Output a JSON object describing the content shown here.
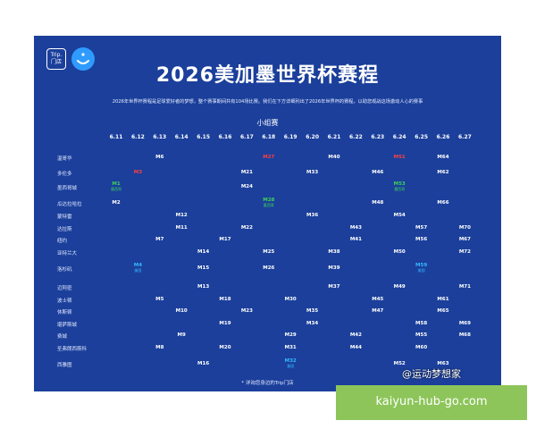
{
  "logo": {
    "trip_text": "Trip.\n门店"
  },
  "title": "2026美加墨世界杯赛程",
  "subtitle": "2026年世界杯赛程是足球爱好者的梦想，整个赛事期间共有104场比赛。我们在下方详细列出了2026年世界杯的赛程，以助您观战这场激动人心的赛事",
  "stage": "小组赛",
  "dates": [
    "6.11",
    "6.12",
    "6.13",
    "6.14",
    "6.15",
    "6.16",
    "6.17",
    "6.18",
    "6.19",
    "6.20",
    "6.21",
    "6.22",
    "6.23",
    "6.24",
    "6.25",
    "6.26",
    "6.27"
  ],
  "cities": [
    "温哥华",
    "多伦多",
    "墨西哥城",
    "瓜达拉哈拉",
    "蒙特雷",
    "达拉斯",
    "纽约",
    "亚特兰大",
    "洛杉矶",
    "迈阿密",
    "波士顿",
    "休斯顿",
    "堪萨斯城",
    "费城",
    "圣弗朗西斯科",
    "西雅图"
  ],
  "matches": [
    {
      "city": 0,
      "date": 2,
      "label": "M6"
    },
    {
      "city": 0,
      "date": 7,
      "label": "M27",
      "color": "red"
    },
    {
      "city": 0,
      "date": 10,
      "label": "M40"
    },
    {
      "city": 0,
      "date": 13,
      "label": "M51",
      "color": "red"
    },
    {
      "city": 0,
      "date": 15,
      "label": "M64"
    },
    {
      "city": 1,
      "date": 1,
      "label": "M3",
      "color": "red"
    },
    {
      "city": 1,
      "date": 6,
      "label": "M21"
    },
    {
      "city": 1,
      "date": 9,
      "label": "M33"
    },
    {
      "city": 1,
      "date": 12,
      "label": "M46"
    },
    {
      "city": 1,
      "date": 15,
      "label": "M62"
    },
    {
      "city": 2,
      "date": 0,
      "label": "M1",
      "sub": "墨西哥",
      "color": "green"
    },
    {
      "city": 2,
      "date": 6,
      "label": "M24"
    },
    {
      "city": 2,
      "date": 13,
      "label": "M53",
      "sub": "墨西哥",
      "color": "green"
    },
    {
      "city": 3,
      "date": 0,
      "label": "M2"
    },
    {
      "city": 3,
      "date": 7,
      "label": "M28",
      "sub": "墨西哥",
      "color": "green"
    },
    {
      "city": 3,
      "date": 12,
      "label": "M48"
    },
    {
      "city": 3,
      "date": 15,
      "label": "M66"
    },
    {
      "city": 4,
      "date": 3,
      "label": "M12"
    },
    {
      "city": 4,
      "date": 9,
      "label": "M36"
    },
    {
      "city": 4,
      "date": 13,
      "label": "M54"
    },
    {
      "city": 5,
      "date": 3,
      "label": "M11"
    },
    {
      "city": 5,
      "date": 6,
      "label": "M22"
    },
    {
      "city": 5,
      "date": 11,
      "label": "M43"
    },
    {
      "city": 5,
      "date": 14,
      "label": "M57"
    },
    {
      "city": 5,
      "date": 16,
      "label": "M70"
    },
    {
      "city": 6,
      "date": 2,
      "label": "M7"
    },
    {
      "city": 6,
      "date": 5,
      "label": "M17"
    },
    {
      "city": 6,
      "date": 11,
      "label": "M41"
    },
    {
      "city": 6,
      "date": 14,
      "label": "M56"
    },
    {
      "city": 6,
      "date": 16,
      "label": "M67"
    },
    {
      "city": 7,
      "date": 4,
      "label": "M14"
    },
    {
      "city": 7,
      "date": 7,
      "label": "M25"
    },
    {
      "city": 7,
      "date": 10,
      "label": "M38"
    },
    {
      "city": 7,
      "date": 13,
      "label": "M50"
    },
    {
      "city": 7,
      "date": 16,
      "label": "M72"
    },
    {
      "city": 8,
      "date": 1,
      "label": "M4",
      "sub": "美国",
      "color": "cyan"
    },
    {
      "city": 8,
      "date": 4,
      "label": "M15"
    },
    {
      "city": 8,
      "date": 7,
      "label": "M26"
    },
    {
      "city": 8,
      "date": 10,
      "label": "M39"
    },
    {
      "city": 8,
      "date": 14,
      "label": "M59",
      "sub": "美国",
      "color": "cyan"
    },
    {
      "city": 9,
      "date": 4,
      "label": "M13"
    },
    {
      "city": 9,
      "date": 10,
      "label": "M37"
    },
    {
      "city": 9,
      "date": 13,
      "label": "M49"
    },
    {
      "city": 9,
      "date": 16,
      "label": "M71"
    },
    {
      "city": 10,
      "date": 2,
      "label": "M5"
    },
    {
      "city": 10,
      "date": 5,
      "label": "M18"
    },
    {
      "city": 10,
      "date": 8,
      "label": "M30"
    },
    {
      "city": 10,
      "date": 12,
      "label": "M45"
    },
    {
      "city": 10,
      "date": 15,
      "label": "M61"
    },
    {
      "city": 11,
      "date": 3,
      "label": "M10"
    },
    {
      "city": 11,
      "date": 6,
      "label": "M23"
    },
    {
      "city": 11,
      "date": 9,
      "label": "M35"
    },
    {
      "city": 11,
      "date": 12,
      "label": "M47"
    },
    {
      "city": 11,
      "date": 15,
      "label": "M65"
    },
    {
      "city": 12,
      "date": 5,
      "label": "M19"
    },
    {
      "city": 12,
      "date": 9,
      "label": "M34"
    },
    {
      "city": 12,
      "date": 14,
      "label": "M58"
    },
    {
      "city": 12,
      "date": 16,
      "label": "M69"
    },
    {
      "city": 13,
      "date": 3,
      "label": "M9"
    },
    {
      "city": 13,
      "date": 8,
      "label": "M29"
    },
    {
      "city": 13,
      "date": 11,
      "label": "M42"
    },
    {
      "city": 13,
      "date": 14,
      "label": "M55"
    },
    {
      "city": 13,
      "date": 16,
      "label": "M68"
    },
    {
      "city": 14,
      "date": 2,
      "label": "M8"
    },
    {
      "city": 14,
      "date": 5,
      "label": "M20"
    },
    {
      "city": 14,
      "date": 8,
      "label": "M31"
    },
    {
      "city": 14,
      "date": 11,
      "label": "M44"
    },
    {
      "city": 14,
      "date": 14,
      "label": "M60"
    },
    {
      "city": 15,
      "date": 4,
      "label": "M16"
    },
    {
      "city": 15,
      "date": 8,
      "label": "M32",
      "sub": "美国",
      "color": "cyan"
    },
    {
      "city": 15,
      "date": 13,
      "label": "M52"
    },
    {
      "city": 15,
      "date": 15,
      "label": "M63"
    }
  ],
  "footer": "* 详询您身边的Trip门店",
  "watermark": "@运动梦想家",
  "banner": "kaiyun-hub-go.com"
}
